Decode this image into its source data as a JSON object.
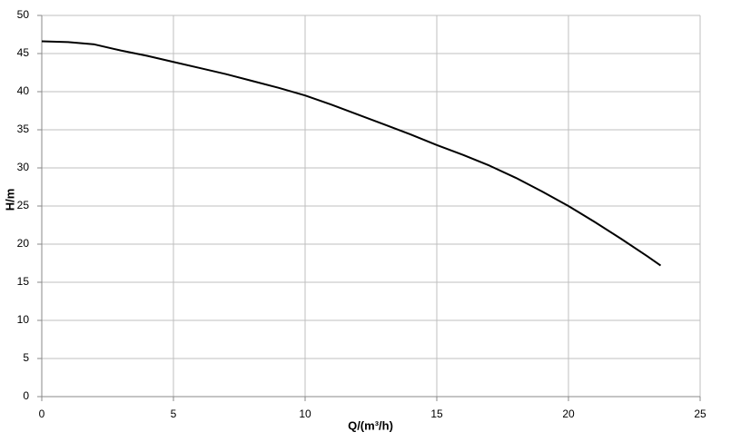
{
  "chart_data": {
    "type": "line",
    "x_label": "Q/(m³/h)",
    "y_label": "H/m",
    "x": [
      0,
      1,
      2,
      3,
      4,
      5,
      6,
      7,
      8,
      9,
      10,
      11,
      12,
      13,
      14,
      15,
      16,
      17,
      18,
      19,
      20,
      21,
      22,
      23,
      23.5
    ],
    "series": [
      {
        "color": "#000000",
        "values": [
          46.6,
          46.5,
          46.2,
          45.4,
          44.7,
          43.9,
          43.1,
          42.3,
          41.4,
          40.5,
          39.5,
          38.3,
          37.0,
          35.7,
          34.4,
          33.0,
          31.7,
          30.3,
          28.7,
          26.9,
          25.0,
          22.9,
          20.7,
          18.4,
          17.2
        ]
      }
    ],
    "xlim": [
      0,
      25
    ],
    "xticks": [
      0,
      5,
      10,
      15,
      20,
      25
    ],
    "ylim": [
      0,
      50
    ],
    "yticks": [
      0,
      5,
      10,
      15,
      20,
      25,
      30,
      35,
      40,
      45,
      50
    ],
    "grid": true
  }
}
